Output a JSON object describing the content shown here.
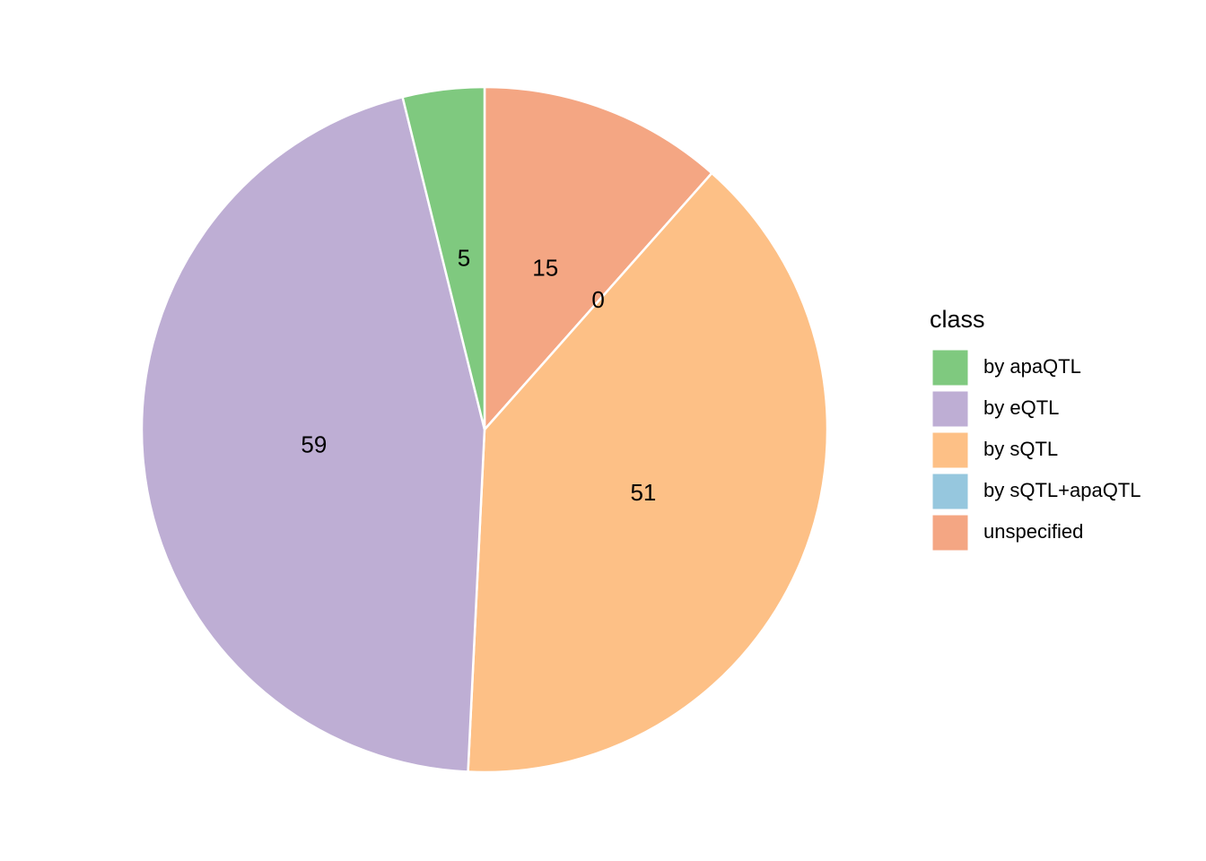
{
  "chart_data": {
    "type": "pie",
    "legend_title": "class",
    "categories": [
      "by apaQTL",
      "by eQTL",
      "by sQTL",
      "by sQTL+apaQTL",
      "unspecified"
    ],
    "values": [
      5,
      59,
      51,
      0,
      15
    ],
    "colors": [
      "#7fc97f",
      "#beaed4",
      "#fdc086",
      "#96c7de",
      "#f4a683"
    ],
    "legend": "right"
  }
}
